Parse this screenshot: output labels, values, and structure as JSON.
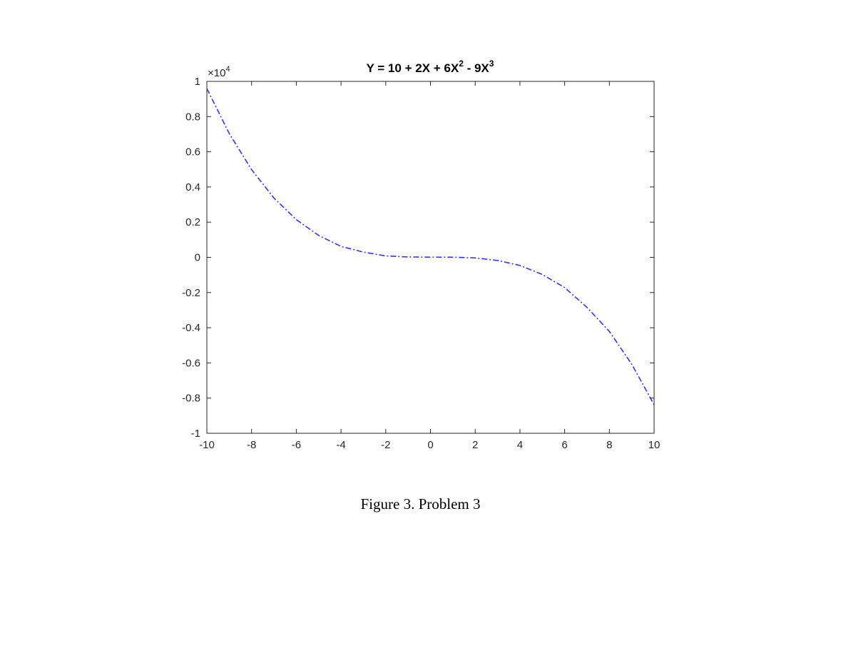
{
  "chart_data": {
    "type": "line",
    "title": {
      "prefix": "Y = 10 + 2X + 6X",
      "sup1": "2",
      "mid": " - 9X",
      "sup2": "3"
    },
    "y_exponent": {
      "base": "×10",
      "power": "4"
    },
    "xlim": [
      -10,
      10
    ],
    "ylim": [
      -1,
      1
    ],
    "x_ticks": [
      -10,
      -8,
      -6,
      -4,
      -2,
      0,
      2,
      4,
      6,
      8,
      10
    ],
    "x_tick_labels": [
      "-10",
      "-8",
      "-6",
      "-4",
      "-2",
      "0",
      "2",
      "4",
      "6",
      "8",
      "10"
    ],
    "y_ticks": [
      -1,
      -0.8,
      -0.6,
      -0.4,
      -0.2,
      0,
      0.2,
      0.4,
      0.6,
      0.8,
      1
    ],
    "y_tick_labels": [
      "-1",
      "-0.8",
      "-0.6",
      "-0.4",
      "-0.2",
      "0",
      "0.2",
      "0.4",
      "0.6",
      "0.8",
      "1"
    ],
    "series": [
      {
        "color": "#3333ff",
        "line_style": "dash-dot",
        "x": [
          -10,
          -9,
          -8,
          -7,
          -6,
          -5,
          -4,
          -3,
          -2,
          -1,
          0,
          1,
          2,
          3,
          4,
          5,
          6,
          7,
          8,
          9,
          10
        ],
        "y": [
          0.959,
          0.7037,
          0.4982,
          0.3369,
          0.2142,
          0.1245,
          0.0621,
          0.0298,
          0.0078,
          0.0023,
          0.001,
          0.0009,
          -0.0034,
          -0.0178,
          -0.0462,
          -0.0975,
          -0.1718,
          -0.2847,
          -0.4214,
          -0.6077,
          -0.8378
        ]
      }
    ],
    "grid": false,
    "box": true
  },
  "caption": "Figure 3. Problem 3"
}
